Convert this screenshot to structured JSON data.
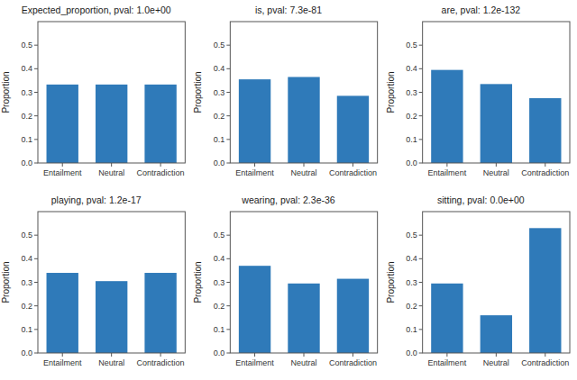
{
  "chart_data": [
    {
      "type": "bar",
      "title": "Expected_proportion, pval: 1.0e+00",
      "categories": [
        "Entailment",
        "Neutral",
        "Contradiction"
      ],
      "values": [
        0.333,
        0.333,
        0.333
      ],
      "color": "#2f7ab9",
      "ylabel": "Proportion",
      "ylim": [
        0,
        0.6
      ],
      "yticks": [
        {
          "value": 0,
          "label": "0.0"
        },
        0.1,
        0.2,
        0.3,
        0.4,
        0.5
      ],
      "grid": false
    },
    {
      "type": "bar",
      "title": "is, pval: 7.3e-81",
      "categories": [
        "Entailment",
        "Neutral",
        "Contradiction"
      ],
      "values": [
        0.355,
        0.365,
        0.285
      ],
      "color": "#2f7ab9",
      "ylabel": "Proportion",
      "ylim": [
        0,
        0.6
      ],
      "yticks": [
        {
          "value": 0,
          "label": "0.0"
        },
        0.1,
        0.2,
        0.3,
        0.4,
        0.5
      ],
      "grid": false
    },
    {
      "type": "bar",
      "title": "are, pval: 1.2e-132",
      "categories": [
        "Entailment",
        "Neutral",
        "Contradiction"
      ],
      "values": [
        0.395,
        0.335,
        0.275
      ],
      "color": "#2f7ab9",
      "ylabel": "Proportion",
      "ylim": [
        0,
        0.6
      ],
      "yticks": [
        {
          "value": 0,
          "label": "0.0"
        },
        0.1,
        0.2,
        0.3,
        0.4,
        0.5
      ],
      "grid": false
    },
    {
      "type": "bar",
      "title": "playing, pval: 1.2e-17",
      "categories": [
        "Entailment",
        "Neutral",
        "Contradiction"
      ],
      "values": [
        0.34,
        0.305,
        0.34
      ],
      "color": "#2f7ab9",
      "ylabel": "Proportion",
      "ylim": [
        0,
        0.6
      ],
      "yticks": [
        {
          "value": 0,
          "label": "0.0"
        },
        0.1,
        0.2,
        0.3,
        0.4,
        0.5
      ],
      "grid": false
    },
    {
      "type": "bar",
      "title": "wearing, pval: 2.3e-36",
      "categories": [
        "Entailment",
        "Neutral",
        "Contradiction"
      ],
      "values": [
        0.37,
        0.295,
        0.315
      ],
      "color": "#2f7ab9",
      "ylabel": "Proportion",
      "ylim": [
        0,
        0.6
      ],
      "yticks": [
        {
          "value": 0,
          "label": "0.0"
        },
        0.1,
        0.2,
        0.3,
        0.4,
        0.5
      ],
      "grid": false
    },
    {
      "type": "bar",
      "title": "sitting, pval: 0.0e+00",
      "categories": [
        "Entailment",
        "Neutral",
        "Contradiction"
      ],
      "values": [
        0.295,
        0.16,
        0.53
      ],
      "color": "#2f7ab9",
      "ylabel": "Proportion",
      "ylim": [
        0,
        0.6
      ],
      "yticks": [
        {
          "value": 0,
          "label": "0.0"
        },
        0.1,
        0.2,
        0.3,
        0.4,
        0.5
      ],
      "grid": false
    }
  ]
}
